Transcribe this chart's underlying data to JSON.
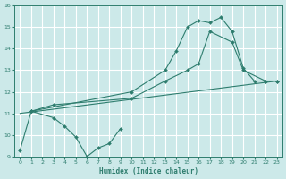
{
  "xlabel": "Humidex (Indice chaleur)",
  "xlim": [
    -0.5,
    23.5
  ],
  "ylim": [
    9,
    16
  ],
  "yticks": [
    9,
    10,
    11,
    12,
    13,
    14,
    15,
    16
  ],
  "xticks": [
    0,
    1,
    2,
    3,
    4,
    5,
    6,
    7,
    8,
    9,
    10,
    11,
    12,
    13,
    14,
    15,
    16,
    17,
    18,
    19,
    20,
    21,
    22,
    23
  ],
  "bg_color": "#cce9e9",
  "grid_color": "#ffffff",
  "line_color": "#2e7d6e",
  "line1_x": [
    0,
    1,
    3,
    4,
    5,
    6,
    7,
    8,
    9
  ],
  "line1_y": [
    9.3,
    11.1,
    10.8,
    10.4,
    9.9,
    9.0,
    9.4,
    9.6,
    10.3
  ],
  "line2_x": [
    1,
    3,
    10,
    13,
    15,
    16,
    17,
    19,
    20,
    22,
    23
  ],
  "line2_y": [
    11.1,
    11.4,
    11.7,
    12.5,
    13.0,
    13.3,
    14.8,
    14.3,
    13.0,
    12.5,
    12.5
  ],
  "line3_x": [
    1,
    10,
    13,
    14,
    15,
    16,
    17,
    18,
    19,
    20,
    21,
    22,
    23
  ],
  "line3_y": [
    11.1,
    12.0,
    13.0,
    13.9,
    15.0,
    15.3,
    15.2,
    15.45,
    14.8,
    13.1,
    12.5,
    12.5,
    12.5
  ],
  "line4_x": [
    0,
    23
  ],
  "line4_y": [
    11.0,
    12.5
  ]
}
